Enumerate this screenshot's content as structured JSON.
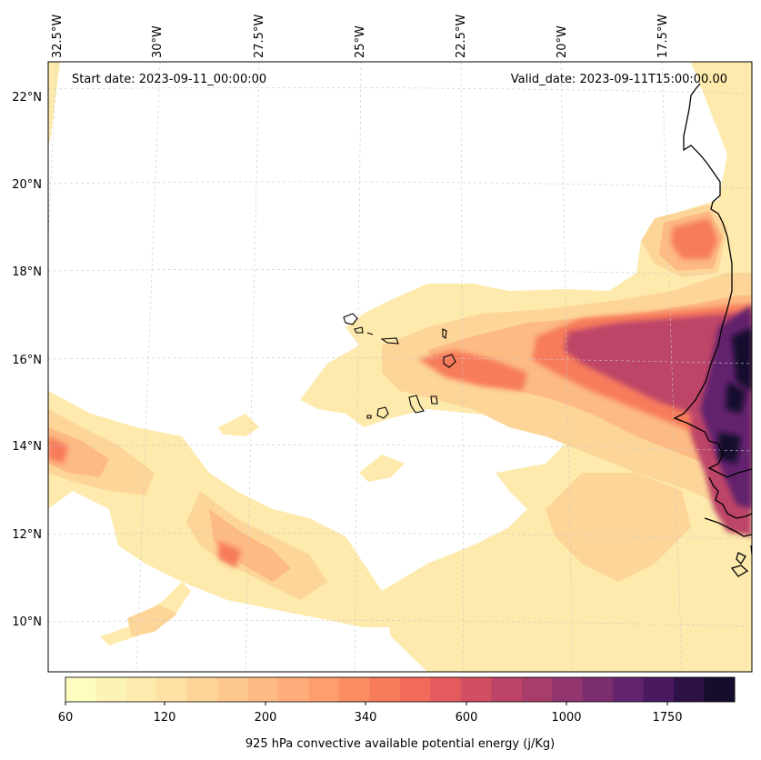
{
  "header": {
    "start_date": "Start date: 2023-09-11_00:00:00",
    "valid_date": "Valid_date: 2023-09-11T15:00:00.00"
  },
  "map": {
    "lon_labels": [
      "32.5°W",
      "30°W",
      "27.5°W",
      "25°W",
      "22.5°W",
      "20°W",
      "17.5°W"
    ],
    "lat_labels": [
      "22°N",
      "20°N",
      "18°N",
      "16°N",
      "14°N",
      "12°N",
      "10°N"
    ],
    "colors": {
      "ocean": "#ffffff",
      "coastline": "#000000",
      "gridline": "#c8c8c8"
    }
  },
  "colorbar": {
    "tick_labels": [
      "60",
      "120",
      "200",
      "340",
      "600",
      "1000",
      "1750"
    ],
    "label": "925 hPa convective available potential energy (j/Kg)",
    "colors": [
      "#fcfdbf",
      "#fcf4b6",
      "#fdeaac",
      "#fde0a3",
      "#fdd599",
      "#fdc88e",
      "#fdba83",
      "#feac79",
      "#fe9e6c",
      "#fb8d61",
      "#f77c5b",
      "#f06b5a",
      "#e35b5d",
      "#d24e62",
      "#bd4468",
      "#a83c6b",
      "#93356e",
      "#7c2d6f",
      "#63246e",
      "#4a1a60",
      "#2e1147",
      "#160d2e"
    ]
  }
}
